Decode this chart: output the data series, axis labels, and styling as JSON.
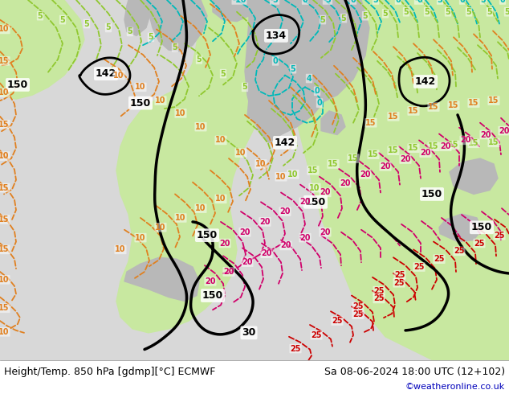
{
  "title_left": "Height/Temp. 850 hPa [gdmp][°C] ECMWF",
  "title_right": "Sa 08-06-2024 18:00 UTC (12+102)",
  "watermark": "©weatheronline.co.uk",
  "fig_width": 6.34,
  "fig_height": 4.9,
  "dpi": 100,
  "bg_ocean": "#d8d8d8",
  "bg_land_green": "#c8e8a0",
  "bg_land_gray": "#b8b8b8",
  "color_black": "#000000",
  "color_cyan": "#00b8b8",
  "color_ygreen": "#90c830",
  "color_orange": "#e08020",
  "color_magenta": "#d0006a",
  "color_red": "#cc0000"
}
